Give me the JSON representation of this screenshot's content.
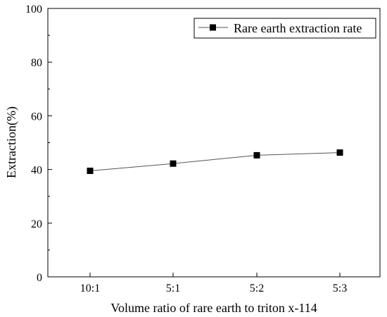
{
  "chart_data": {
    "type": "line",
    "title": "",
    "xlabel": "Volume ratio of rare earth to triton x-114",
    "ylabel": "Extraction(%)",
    "categories": [
      "10:1",
      "5:1",
      "5:2",
      "5:3"
    ],
    "ylim": [
      0,
      100
    ],
    "yticks": [
      0,
      20,
      40,
      60,
      80,
      100
    ],
    "grid": false,
    "legend_position": "top-right",
    "series": [
      {
        "name": "Rare earth extraction rate",
        "values": [
          39.5,
          42.2,
          45.3,
          46.3
        ],
        "marker": "square",
        "color": "#000000"
      }
    ]
  }
}
